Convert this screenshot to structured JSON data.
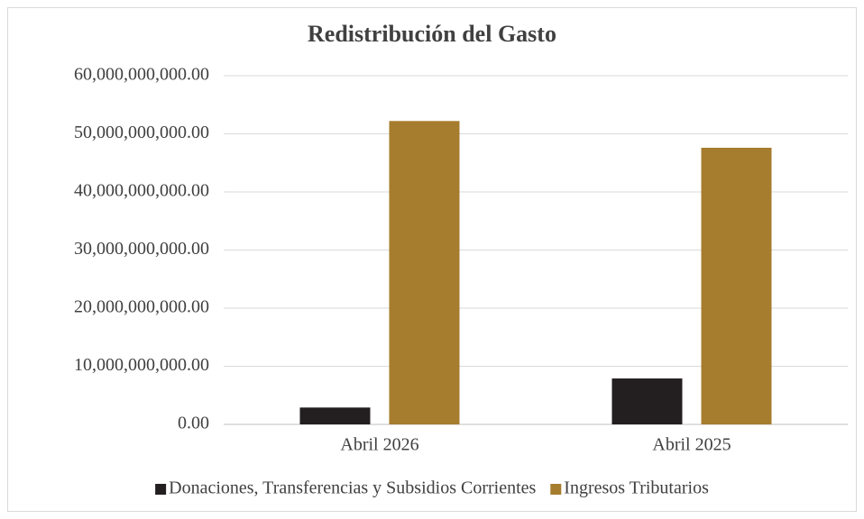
{
  "chart_data": {
    "type": "bar",
    "title": "Redistribución del Gasto",
    "categories": [
      "Abril 2026",
      "Abril 2025"
    ],
    "series": [
      {
        "name": "Donaciones, Transferencias y Subsidios Corrientes",
        "color": "#231f20",
        "values": [
          2900000000,
          7900000000
        ]
      },
      {
        "name": "Ingresos Tributarios",
        "color": "#a67c2e",
        "values": [
          52200000000,
          47600000000
        ]
      }
    ],
    "ylim": [
      0,
      60000000000
    ],
    "yticks": [
      {
        "value": 0,
        "label": "0.00"
      },
      {
        "value": 10000000000,
        "label": "10,000,000,000.00"
      },
      {
        "value": 20000000000,
        "label": "20,000,000,000.00"
      },
      {
        "value": 30000000000,
        "label": "30,000,000,000.00"
      },
      {
        "value": 40000000000,
        "label": "40,000,000,000.00"
      },
      {
        "value": 50000000000,
        "label": "50,000,000,000.00"
      },
      {
        "value": 60000000000,
        "label": "60,000,000,000.00"
      }
    ],
    "grid": true,
    "legend": "bottom"
  }
}
